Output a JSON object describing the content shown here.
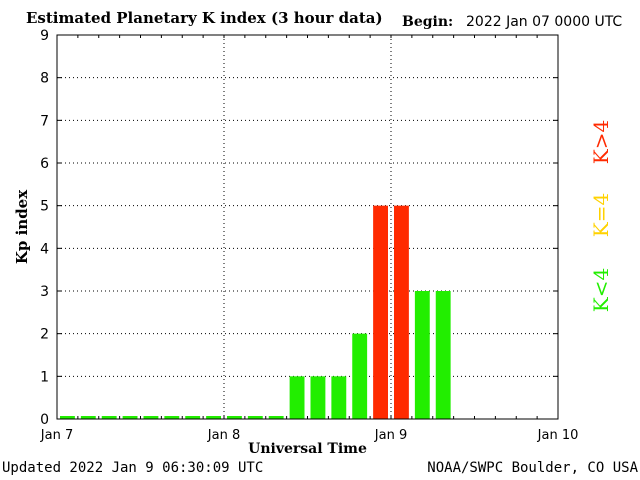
{
  "header": {
    "title": "Estimated Planetary K index (3 hour data)",
    "begin_label": "Begin:",
    "begin_value": "2022 Jan 07 0000 UTC"
  },
  "footer": {
    "updated": "Updated 2022 Jan  9 06:30:09 UTC",
    "credit": "NOAA/SWPC Boulder, CO USA"
  },
  "legend": [
    {
      "label": "K<4",
      "color": "#22ee00"
    },
    {
      "label": "K=4",
      "color": "#ffd200"
    },
    {
      "label": "K>4",
      "color": "#ff2a00"
    }
  ],
  "chart_data": {
    "type": "bar",
    "title": "Estimated Planetary K index (3 hour data)",
    "xlabel": "Universal Time",
    "ylabel": "Kp index",
    "ylim": [
      0,
      9
    ],
    "yticks": [
      "0",
      "1",
      "2",
      "3",
      "4",
      "5",
      "6",
      "7",
      "8",
      "9"
    ],
    "xticks": [
      "Jan 7",
      "Jan 8",
      "Jan 9",
      "Jan 10"
    ],
    "xrange_days": 3,
    "bar_interval_hours": 3,
    "grid": "dotted",
    "colors": {
      "low": "#22ee00",
      "mid": "#ffd200",
      "high": "#ff2a00"
    },
    "values": [
      0,
      0,
      0,
      0,
      0,
      0,
      0,
      0,
      0,
      0,
      0,
      1,
      1,
      1,
      2,
      5,
      5,
      3,
      3
    ]
  }
}
